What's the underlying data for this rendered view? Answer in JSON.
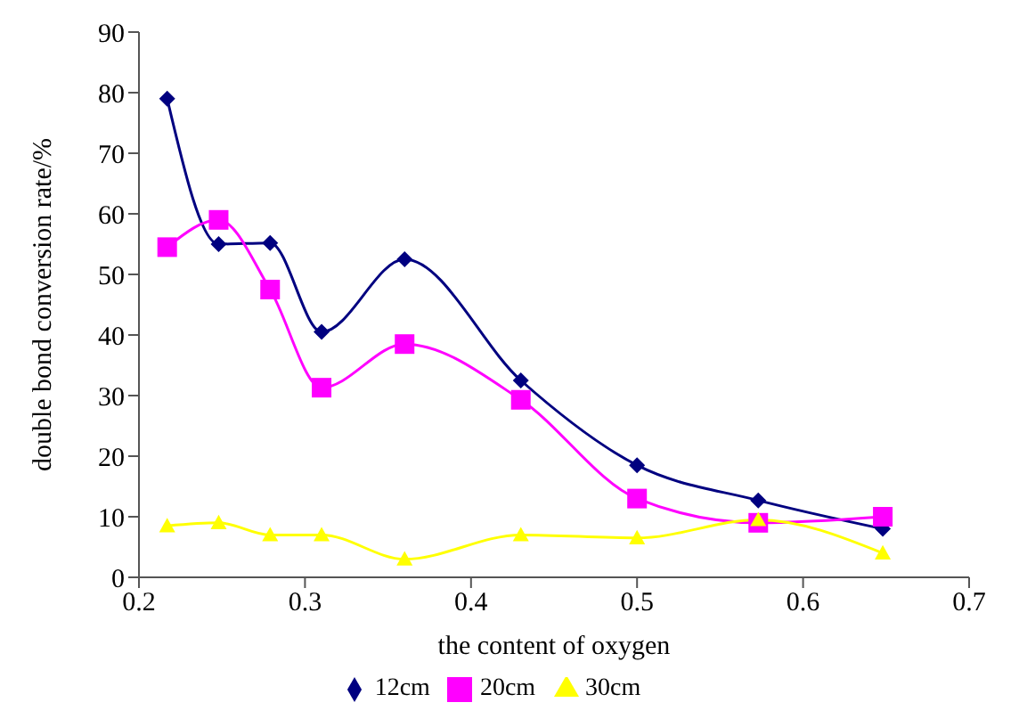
{
  "chart_data": {
    "type": "line",
    "xlabel": "the content of oxygen",
    "ylabel": "double bond conversion rate/%",
    "x": [
      0.217,
      0.248,
      0.279,
      0.31,
      0.36,
      0.43,
      0.5,
      0.573,
      0.648
    ],
    "series": [
      {
        "name": "12cm",
        "color": "#000080",
        "marker": "diamond",
        "values": [
          79,
          55,
          55.2,
          40.5,
          52.5,
          32.5,
          18.5,
          12.7,
          8
        ]
      },
      {
        "name": "20cm",
        "color": "#ff00ff",
        "marker": "square",
        "values": [
          54.5,
          59,
          47.5,
          31.3,
          38.5,
          29.3,
          13,
          9,
          10
        ]
      },
      {
        "name": "30cm",
        "color": "#ffff00",
        "marker": "triangle",
        "values": [
          8.5,
          9,
          7,
          7,
          3,
          7,
          6.5,
          9.5,
          4
        ]
      }
    ],
    "xlim": [
      0.2,
      0.7
    ],
    "xticks": [
      {
        "value": 0.2,
        "label": "0.2"
      },
      {
        "value": 0.3,
        "label": "0.3"
      },
      {
        "value": 0.4,
        "label": "0.4"
      },
      {
        "value": 0.5,
        "label": "0.5"
      },
      {
        "value": 0.6,
        "label": "0.6"
      },
      {
        "value": 0.7,
        "label": "0.7"
      }
    ],
    "ylim": [
      0,
      90
    ],
    "yticks": [
      0,
      10,
      20,
      30,
      40,
      50,
      60,
      70,
      80,
      90
    ],
    "grid": false,
    "legend": "bottom",
    "line_style": "solid"
  }
}
